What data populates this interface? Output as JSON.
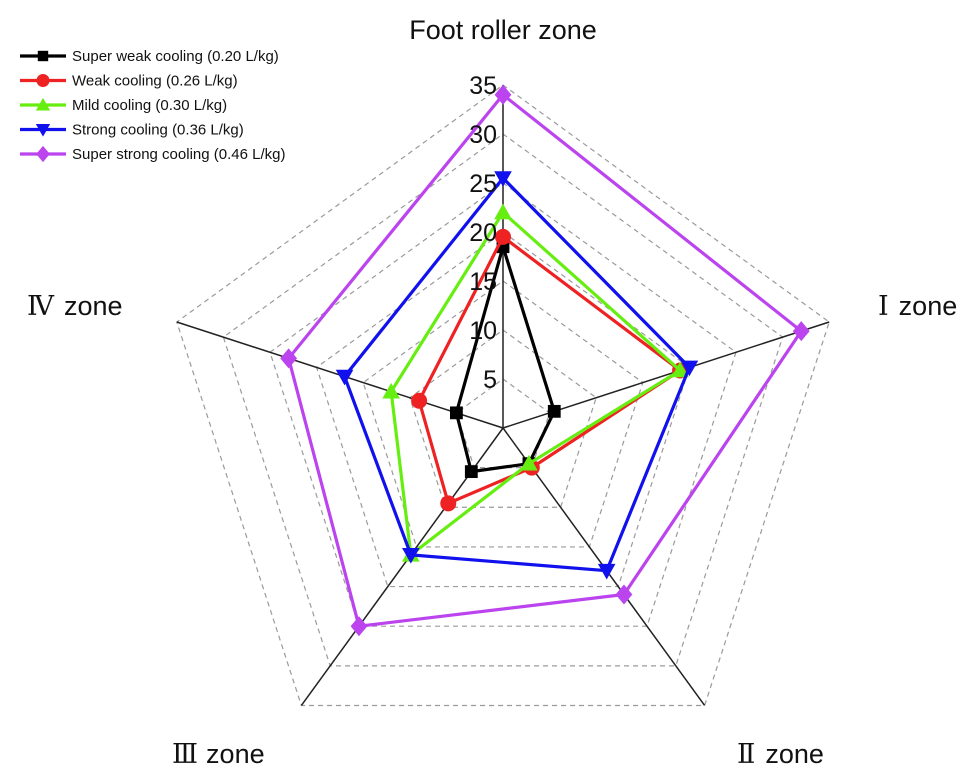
{
  "chart_data": {
    "type": "radar",
    "axes": [
      {
        "roman": "",
        "label": "Foot roller zone"
      },
      {
        "roman": "Ⅰ",
        "label": "zone"
      },
      {
        "roman": "Ⅱ",
        "label": "zone"
      },
      {
        "roman": "Ⅲ",
        "label": "zone"
      },
      {
        "roman": "Ⅳ",
        "label": "zone"
      }
    ],
    "rlim": [
      0,
      35
    ],
    "ticks": [
      5,
      10,
      15,
      20,
      25,
      30,
      35
    ],
    "grid": true,
    "legend_position": "top-left",
    "series": [
      {
        "name": "Super weak cooling (0.20 L/kg)",
        "color": "#000000",
        "marker": "square",
        "values": [
          18.5,
          5.5,
          4.5,
          5.5,
          5.0
        ]
      },
      {
        "name": "Weak cooling (0.26 L/kg)",
        "color": "#ee2222",
        "marker": "circle",
        "values": [
          19.5,
          19.0,
          5.0,
          9.5,
          9.0
        ]
      },
      {
        "name": "Mild cooling (0.30 L/kg)",
        "color": "#66ee11",
        "marker": "triangle-up",
        "values": [
          22.0,
          19.0,
          4.5,
          16.0,
          12.0
        ]
      },
      {
        "name": "Strong cooling (0.36 L/kg)",
        "color": "#1111ee",
        "marker": "triangle-down",
        "values": [
          25.5,
          20.0,
          18.0,
          16.0,
          17.0
        ]
      },
      {
        "name": "Super strong cooling (0.46 L/kg)",
        "color": "#bb44ee",
        "marker": "diamond",
        "values": [
          34.0,
          32.0,
          21.0,
          25.0,
          23.0
        ]
      }
    ]
  }
}
